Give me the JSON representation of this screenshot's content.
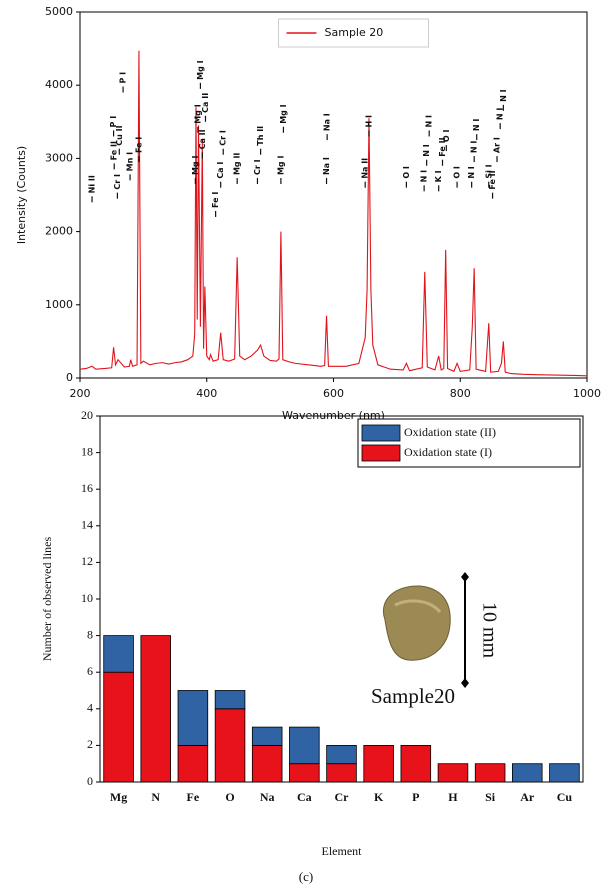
{
  "chart_data": [
    {
      "type": "line",
      "xlabel": "Wavenumber (nm)",
      "ylabel": "Intensity (Counts)",
      "x": [
        200,
        210,
        219,
        225,
        240,
        250,
        253,
        256,
        260,
        270,
        278,
        280,
        283,
        290,
        293,
        296,
        300,
        310,
        320,
        330,
        340,
        350,
        360,
        370,
        378,
        381,
        383,
        385,
        387,
        390,
        393,
        395,
        397,
        400,
        404,
        406,
        410,
        418,
        422,
        426,
        435,
        444,
        448,
        452,
        460,
        470,
        480,
        485,
        490,
        500,
        510,
        514,
        517,
        520,
        530,
        540,
        560,
        580,
        586,
        589,
        592,
        600,
        620,
        640,
        650,
        653,
        656,
        659,
        662,
        670,
        690,
        710,
        715,
        720,
        740,
        744,
        748,
        760,
        766,
        770,
        774,
        777,
        780,
        790,
        795,
        800,
        815,
        819,
        822,
        825,
        840,
        845,
        848,
        860,
        865,
        868,
        871,
        880,
        900,
        920,
        950,
        980,
        1000
      ],
      "series": [
        {
          "name": "Sample 20",
          "color": "#e0141c",
          "values": [
            120,
            130,
            160,
            120,
            130,
            140,
            420,
            180,
            250,
            150,
            160,
            250,
            160,
            180,
            4470,
            200,
            230,
            180,
            200,
            210,
            190,
            210,
            220,
            250,
            300,
            600,
            3700,
            800,
            3450,
            700,
            3250,
            400,
            1250,
            300,
            250,
            320,
            230,
            250,
            620,
            250,
            230,
            260,
            1650,
            300,
            250,
            300,
            380,
            450,
            300,
            240,
            230,
            260,
            2000,
            250,
            220,
            200,
            180,
            160,
            170,
            850,
            160,
            160,
            160,
            200,
            550,
            1200,
            3550,
            1200,
            450,
            180,
            120,
            110,
            200,
            100,
            140,
            1450,
            150,
            110,
            300,
            110,
            130,
            1750,
            130,
            90,
            200,
            90,
            110,
            700,
            1500,
            120,
            90,
            750,
            80,
            90,
            200,
            500,
            80,
            60,
            50,
            45,
            40,
            35,
            30
          ]
        }
      ],
      "xlim": [
        200,
        1000
      ],
      "xticks": [
        200,
        400,
        600,
        800,
        1000
      ],
      "ylim": [
        0,
        5000
      ],
      "yticks": [
        0,
        1000,
        2000,
        3000,
        4000,
        5000
      ],
      "legend": "upper center",
      "annotations": [
        {
          "text": "Ni II",
          "x": 219,
          "y": 2400
        },
        {
          "text": "Fe II",
          "x": 254,
          "y": 2850
        },
        {
          "text": "Cr I",
          "x": 259,
          "y": 2450
        },
        {
          "text": "P I",
          "x": 253,
          "y": 3300
        },
        {
          "text": "Cu II",
          "x": 262,
          "y": 3050
        },
        {
          "text": "P I",
          "x": 268,
          "y": 3900
        },
        {
          "text": "Mn I",
          "x": 279,
          "y": 2700
        },
        {
          "text": "Fe I",
          "x": 293,
          "y": 2950
        },
        {
          "text": "Mg I",
          "x": 382,
          "y": 2650
        },
        {
          "text": "Mg I",
          "x": 386,
          "y": 3350
        },
        {
          "text": "Mg I",
          "x": 390,
          "y": 3950
        },
        {
          "text": "Ca II",
          "x": 393,
          "y": 3000
        },
        {
          "text": "Ca II",
          "x": 398,
          "y": 3500
        },
        {
          "text": "Fe I",
          "x": 414,
          "y": 2200
        },
        {
          "text": "Ca I",
          "x": 422,
          "y": 2600
        },
        {
          "text": "Cr I",
          "x": 426,
          "y": 3050
        },
        {
          "text": "Mg II",
          "x": 448,
          "y": 2650
        },
        {
          "text": "Cr I",
          "x": 480,
          "y": 2650
        },
        {
          "text": "Th II",
          "x": 485,
          "y": 3050
        },
        {
          "text": "Mg I",
          "x": 517,
          "y": 2650
        },
        {
          "text": "Mg I",
          "x": 521,
          "y": 3350
        },
        {
          "text": "Na I",
          "x": 589,
          "y": 2650
        },
        {
          "text": "Na I",
          "x": 590,
          "y": 3250
        },
        {
          "text": "Na II",
          "x": 650,
          "y": 2600
        },
        {
          "text": "H I",
          "x": 656,
          "y": 3300
        },
        {
          "text": "O I",
          "x": 715,
          "y": 2600
        },
        {
          "text": "N I",
          "x": 743,
          "y": 2550
        },
        {
          "text": "N I",
          "x": 747,
          "y": 2900
        },
        {
          "text": "N I",
          "x": 751,
          "y": 3300
        },
        {
          "text": "K I",
          "x": 766,
          "y": 2550
        },
        {
          "text": "Fe II",
          "x": 772,
          "y": 2900
        },
        {
          "text": "O I",
          "x": 778,
          "y": 3100
        },
        {
          "text": "O I",
          "x": 795,
          "y": 2600
        },
        {
          "text": "N I",
          "x": 818,
          "y": 2600
        },
        {
          "text": "N I",
          "x": 822,
          "y": 2950
        },
        {
          "text": "N I",
          "x": 826,
          "y": 3250
        },
        {
          "text": "Si I",
          "x": 845,
          "y": 2600
        },
        {
          "text": "Fe II",
          "x": 851,
          "y": 2450
        },
        {
          "text": "Ar I",
          "x": 858,
          "y": 2950
        },
        {
          "text": "N I",
          "x": 863,
          "y": 3400
        },
        {
          "text": "N I",
          "x": 868,
          "y": 3650
        }
      ]
    },
    {
      "type": "bar",
      "stacked": true,
      "xlabel": "Element",
      "ylabel": "Number of observed lines",
      "categories": [
        "Mg",
        "N",
        "Fe",
        "O",
        "Na",
        "Ca",
        "Cr",
        "K",
        "P",
        "H",
        "Si",
        "Ar",
        "Cu"
      ],
      "series": [
        {
          "name": "Oxidation state (I)",
          "color": "#e8121a",
          "values": [
            6,
            8,
            2,
            4,
            2,
            1,
            1,
            2,
            2,
            1,
            1,
            0,
            0
          ]
        },
        {
          "name": "Oxidation state (II)",
          "color": "#2f63a3",
          "values": [
            2,
            0,
            3,
            1,
            1,
            2,
            1,
            0,
            0,
            0,
            0,
            1,
            1
          ]
        }
      ],
      "ylim": [
        0,
        20
      ],
      "yticks": [
        0,
        2,
        4,
        6,
        8,
        10,
        12,
        14,
        16,
        18,
        20
      ],
      "legend": "upper right",
      "inset_labels": [
        "Sample20",
        "10 mm"
      ]
    }
  ],
  "caption": "(c)"
}
